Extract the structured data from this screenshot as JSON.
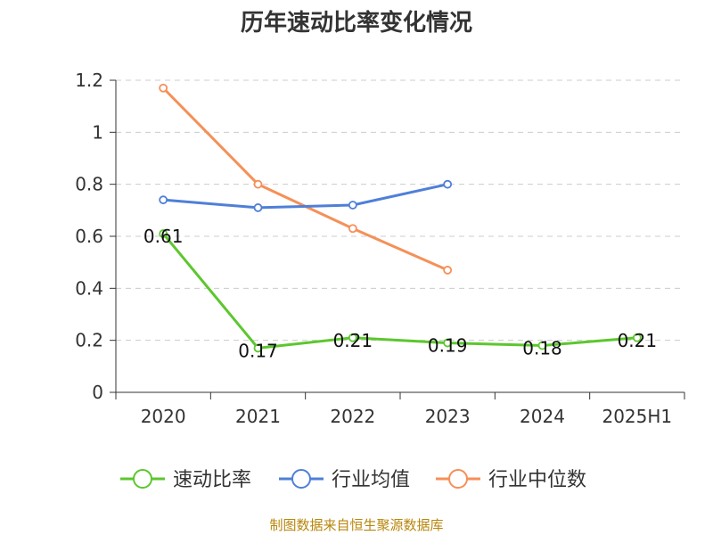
{
  "chart_data": {
    "type": "line",
    "title": "历年速动比率变化情况",
    "categories": [
      "2020",
      "2021",
      "2022",
      "2023",
      "2024",
      "2025H1"
    ],
    "y_ticks": [
      "0",
      "0.2",
      "0.4",
      "0.6",
      "0.8",
      "1",
      "1.2"
    ],
    "ylim": [
      0,
      1.2
    ],
    "grid": true,
    "legend_position": "bottom",
    "series": [
      {
        "name": "速动比率",
        "color": "#5cc72e",
        "values": [
          0.61,
          0.17,
          0.21,
          0.19,
          0.18,
          0.21
        ],
        "labels": [
          "0.61",
          "0.17",
          "0.21",
          "0.19",
          "0.18",
          "0.21"
        ]
      },
      {
        "name": "行业均值",
        "color": "#4f7fd8",
        "values": [
          0.74,
          0.71,
          0.72,
          0.8,
          null,
          null
        ],
        "labels": []
      },
      {
        "name": "行业中位数",
        "color": "#f59058",
        "values": [
          1.17,
          0.8,
          0.63,
          0.47,
          null,
          null
        ],
        "labels": []
      }
    ]
  },
  "source": "制图数据来自恒生聚源数据库"
}
